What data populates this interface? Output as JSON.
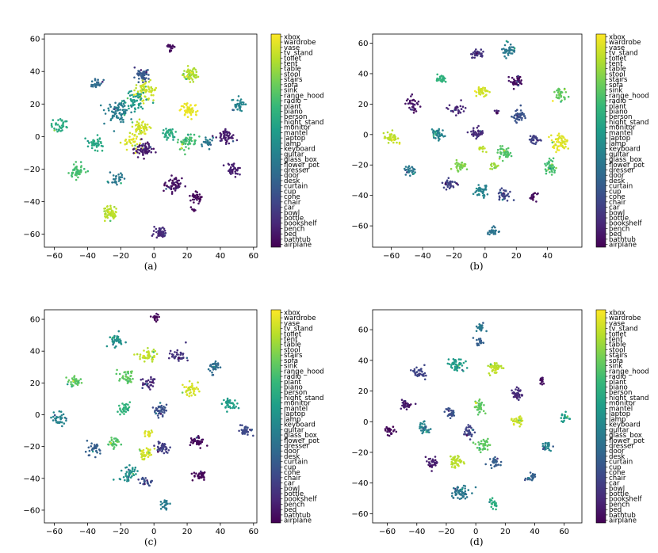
{
  "chart_data": {
    "type": "scatter",
    "description_kind": "t-SNE embedding panels",
    "classes": [
      "xbox",
      "wardrobe",
      "vase",
      "tv_stand",
      "toilet",
      "tent",
      "table",
      "stool",
      "stairs",
      "sofa",
      "sink",
      "range_hood",
      "radio",
      "plant",
      "piano",
      "person",
      "night_stand",
      "monitor",
      "mantel",
      "laptop",
      "lamp",
      "keyboard",
      "guitar",
      "glass_box",
      "flower_pot",
      "dresser",
      "door",
      "desk",
      "curtain",
      "cup",
      "cone",
      "chair",
      "car",
      "bowl",
      "bottle",
      "bookshelf",
      "bench",
      "bed",
      "bathtub",
      "airplane"
    ],
    "colormap": [
      "#440154",
      "#482878",
      "#3e4989",
      "#31688e",
      "#26828e",
      "#1f9e89",
      "#35b779",
      "#6ece58",
      "#b5de2b",
      "#fde725"
    ],
    "panels": [
      {
        "label": "(a)",
        "xlim": [
          -66,
          62
        ],
        "ylim": [
          -68,
          63
        ],
        "xticks": [
          -60,
          -40,
          -20,
          0,
          20,
          40,
          60
        ],
        "yticks": [
          -60,
          -40,
          -20,
          0,
          20,
          40,
          60
        ],
        "clusters": [
          {
            "x": 10,
            "y": 55,
            "c": 0.03,
            "s": 1.2,
            "n": 20
          },
          {
            "x": 22,
            "y": 38,
            "c": 0.88,
            "s": 2.4,
            "n": 60
          },
          {
            "x": -7,
            "y": 38,
            "c": 0.28,
            "s": 2.2,
            "n": 50
          },
          {
            "x": -34,
            "y": 32,
            "c": 0.35,
            "s": 1.8,
            "n": 30
          },
          {
            "x": -5,
            "y": 28,
            "c": 0.92,
            "s": 3.2,
            "n": 70
          },
          {
            "x": -12,
            "y": 22,
            "c": 0.55,
            "s": 3.5,
            "n": 55
          },
          {
            "x": -22,
            "y": 16,
            "c": 0.42,
            "s": 3.5,
            "n": 80
          },
          {
            "x": 21,
            "y": 16,
            "c": 0.97,
            "s": 2.6,
            "n": 55
          },
          {
            "x": 51,
            "y": 20,
            "c": 0.45,
            "s": 2.5,
            "n": 35
          },
          {
            "x": -8,
            "y": 5,
            "c": 0.93,
            "s": 2.6,
            "n": 60
          },
          {
            "x": -57,
            "y": 7,
            "c": 0.6,
            "s": 2.4,
            "n": 35
          },
          {
            "x": -36,
            "y": -4,
            "c": 0.6,
            "s": 2.4,
            "n": 45
          },
          {
            "x": 9,
            "y": 2,
            "c": 0.6,
            "s": 2.0,
            "n": 35
          },
          {
            "x": 20,
            "y": -3,
            "c": 0.7,
            "s": 2.8,
            "n": 55
          },
          {
            "x": 44,
            "y": 0,
            "c": 0.08,
            "s": 2.3,
            "n": 55
          },
          {
            "x": -14,
            "y": -4,
            "c": 0.95,
            "s": 2.8,
            "n": 30
          },
          {
            "x": -6,
            "y": -8,
            "c": 0.07,
            "s": 2.6,
            "n": 65
          },
          {
            "x": 33,
            "y": -4,
            "c": 0.4,
            "s": 1.6,
            "n": 25
          },
          {
            "x": -46,
            "y": -22,
            "c": 0.7,
            "s": 2.4,
            "n": 50
          },
          {
            "x": -23,
            "y": -26,
            "c": 0.4,
            "s": 2.0,
            "n": 30
          },
          {
            "x": 48,
            "y": -20,
            "c": 0.08,
            "s": 2.0,
            "n": 40
          },
          {
            "x": 12,
            "y": -30,
            "c": 0.05,
            "s": 2.4,
            "n": 60
          },
          {
            "x": 25,
            "y": -37,
            "c": 0.02,
            "s": 1.8,
            "n": 35
          },
          {
            "x": -26,
            "y": -47,
            "c": 0.9,
            "s": 2.2,
            "n": 60
          },
          {
            "x": 4,
            "y": -59,
            "c": 0.12,
            "s": 2.0,
            "n": 50
          },
          {
            "x": 24,
            "y": -45,
            "c": 0.03,
            "s": 0.8,
            "n": 6
          }
        ]
      },
      {
        "label": "(b)",
        "xlim": [
          -72,
          62
        ],
        "ylim": [
          -74,
          66
        ],
        "xticks": [
          -60,
          -40,
          -20,
          0,
          20,
          40
        ],
        "yticks": [
          -60,
          -40,
          -20,
          0,
          20,
          40,
          60
        ],
        "clusters": [
          {
            "x": -5,
            "y": 53,
            "c": 0.15,
            "s": 1.8,
            "n": 35
          },
          {
            "x": 15,
            "y": 56,
            "c": 0.4,
            "s": 2.4,
            "n": 40
          },
          {
            "x": -28,
            "y": 36,
            "c": 0.65,
            "s": 1.8,
            "n": 30
          },
          {
            "x": 20,
            "y": 35,
            "c": 0.04,
            "s": 2.0,
            "n": 45
          },
          {
            "x": -2,
            "y": 28,
            "c": 0.93,
            "s": 1.8,
            "n": 35
          },
          {
            "x": 48,
            "y": 26,
            "c": 0.75,
            "s": 2.2,
            "n": 35
          },
          {
            "x": -46,
            "y": 20,
            "c": 0.05,
            "s": 2.5,
            "n": 35
          },
          {
            "x": -18,
            "y": 16,
            "c": 0.1,
            "s": 2.2,
            "n": 30
          },
          {
            "x": 22,
            "y": 12,
            "c": 0.25,
            "s": 2.2,
            "n": 45
          },
          {
            "x": 7,
            "y": 15,
            "c": 0.1,
            "s": 1.0,
            "n": 8
          },
          {
            "x": -60,
            "y": -2,
            "c": 0.9,
            "s": 2.2,
            "n": 40
          },
          {
            "x": -30,
            "y": 0,
            "c": 0.45,
            "s": 2.0,
            "n": 40
          },
          {
            "x": -5,
            "y": 1,
            "c": 0.12,
            "s": 2.0,
            "n": 40
          },
          {
            "x": 32,
            "y": -3,
            "c": 0.2,
            "s": 1.8,
            "n": 30
          },
          {
            "x": 12,
            "y": -12,
            "c": 0.72,
            "s": 2.0,
            "n": 45
          },
          {
            "x": 48,
            "y": -5,
            "c": 0.95,
            "s": 3.0,
            "n": 60
          },
          {
            "x": 6,
            "y": -20,
            "c": 0.85,
            "s": 1.5,
            "n": 15
          },
          {
            "x": -2,
            "y": -10,
            "c": 0.9,
            "s": 1.2,
            "n": 12
          },
          {
            "x": -16,
            "y": -21,
            "c": 0.8,
            "s": 2.0,
            "n": 35
          },
          {
            "x": 42,
            "y": -21,
            "c": 0.7,
            "s": 2.2,
            "n": 45
          },
          {
            "x": -48,
            "y": -24,
            "c": 0.4,
            "s": 2.0,
            "n": 30
          },
          {
            "x": -23,
            "y": -33,
            "c": 0.2,
            "s": 2.2,
            "n": 35
          },
          {
            "x": -2,
            "y": -37,
            "c": 0.45,
            "s": 2.0,
            "n": 40
          },
          {
            "x": 12,
            "y": -40,
            "c": 0.22,
            "s": 2.0,
            "n": 40
          },
          {
            "x": 31,
            "y": -41,
            "c": 0.03,
            "s": 1.2,
            "n": 18
          },
          {
            "x": 5,
            "y": -63,
            "c": 0.38,
            "s": 1.8,
            "n": 25
          }
        ]
      },
      {
        "label": "(c)",
        "xlim": [
          -66,
          62
        ],
        "ylim": [
          -68,
          66
        ],
        "xticks": [
          -60,
          -40,
          -20,
          0,
          20,
          40,
          60
        ],
        "yticks": [
          -60,
          -40,
          -20,
          0,
          20,
          40,
          60
        ],
        "clusters": [
          {
            "x": 1,
            "y": 61,
            "c": 0.02,
            "s": 1.2,
            "n": 20
          },
          {
            "x": -23,
            "y": 47,
            "c": 0.5,
            "s": 2.2,
            "n": 40
          },
          {
            "x": -4,
            "y": 37,
            "c": 0.9,
            "s": 2.6,
            "n": 45
          },
          {
            "x": 15,
            "y": 37,
            "c": 0.15,
            "s": 2.2,
            "n": 40
          },
          {
            "x": 36,
            "y": 30,
            "c": 0.35,
            "s": 2.0,
            "n": 35
          },
          {
            "x": -48,
            "y": 21,
            "c": 0.75,
            "s": 2.0,
            "n": 35
          },
          {
            "x": -17,
            "y": 23,
            "c": 0.75,
            "s": 2.5,
            "n": 40
          },
          {
            "x": -3,
            "y": 20,
            "c": 0.12,
            "s": 2.0,
            "n": 35
          },
          {
            "x": 22,
            "y": 16,
            "c": 0.93,
            "s": 2.2,
            "n": 40
          },
          {
            "x": 46,
            "y": 7,
            "c": 0.55,
            "s": 2.2,
            "n": 40
          },
          {
            "x": -18,
            "y": 4,
            "c": 0.65,
            "s": 1.8,
            "n": 35
          },
          {
            "x": 4,
            "y": 3,
            "c": 0.25,
            "s": 2.0,
            "n": 40
          },
          {
            "x": -57,
            "y": -2,
            "c": 0.45,
            "s": 2.3,
            "n": 35
          },
          {
            "x": 55,
            "y": -10,
            "c": 0.22,
            "s": 2.0,
            "n": 35
          },
          {
            "x": -3,
            "y": -12,
            "c": 0.95,
            "s": 1.5,
            "n": 18
          },
          {
            "x": 5,
            "y": -20,
            "c": 0.18,
            "s": 2.0,
            "n": 40
          },
          {
            "x": 26,
            "y": -17,
            "c": 0.02,
            "s": 2.0,
            "n": 40
          },
          {
            "x": -5,
            "y": -24,
            "c": 0.93,
            "s": 2.2,
            "n": 40
          },
          {
            "x": -37,
            "y": -22,
            "c": 0.3,
            "s": 2.2,
            "n": 35
          },
          {
            "x": -25,
            "y": -18,
            "c": 0.72,
            "s": 2.0,
            "n": 30
          },
          {
            "x": -15,
            "y": -37,
            "c": 0.5,
            "s": 2.8,
            "n": 45
          },
          {
            "x": -5,
            "y": -42,
            "c": 0.25,
            "s": 1.8,
            "n": 25
          },
          {
            "x": 28,
            "y": -38,
            "c": 0.02,
            "s": 2.0,
            "n": 35
          },
          {
            "x": 7,
            "y": -56,
            "c": 0.42,
            "s": 1.6,
            "n": 25
          }
        ]
      },
      {
        "label": "(d)",
        "xlim": [
          -70,
          72
        ],
        "ylim": [
          -66,
          73
        ],
        "xticks": [
          -60,
          -40,
          -20,
          0,
          20,
          40,
          60
        ],
        "yticks": [
          -60,
          -40,
          -20,
          0,
          20,
          40,
          60
        ],
        "clusters": [
          {
            "x": 3,
            "y": 62,
            "c": 0.4,
            "s": 1.5,
            "n": 20
          },
          {
            "x": 3,
            "y": 52,
            "c": 0.3,
            "s": 1.4,
            "n": 20
          },
          {
            "x": -13,
            "y": 37,
            "c": 0.55,
            "s": 2.6,
            "n": 50
          },
          {
            "x": 13,
            "y": 35,
            "c": 0.9,
            "s": 2.2,
            "n": 45
          },
          {
            "x": -38,
            "y": 32,
            "c": 0.2,
            "s": 2.0,
            "n": 35
          },
          {
            "x": 45,
            "y": 27,
            "c": 0.04,
            "s": 1.2,
            "n": 15
          },
          {
            "x": 28,
            "y": 18,
            "c": 0.12,
            "s": 2.0,
            "n": 40
          },
          {
            "x": -48,
            "y": 11,
            "c": 0.08,
            "s": 2.0,
            "n": 35
          },
          {
            "x": 2,
            "y": 10,
            "c": 0.75,
            "s": 2.0,
            "n": 35
          },
          {
            "x": -17,
            "y": 6,
            "c": 0.25,
            "s": 1.8,
            "n": 35
          },
          {
            "x": 28,
            "y": 0,
            "c": 0.92,
            "s": 2.0,
            "n": 35
          },
          {
            "x": 60,
            "y": 3,
            "c": 0.55,
            "s": 1.6,
            "n": 20
          },
          {
            "x": -35,
            "y": -4,
            "c": 0.45,
            "s": 2.0,
            "n": 35
          },
          {
            "x": -58,
            "y": -6,
            "c": 0.02,
            "s": 1.8,
            "n": 25
          },
          {
            "x": -4,
            "y": -6,
            "c": 0.2,
            "s": 2.0,
            "n": 35
          },
          {
            "x": 5,
            "y": -16,
            "c": 0.75,
            "s": 2.2,
            "n": 40
          },
          {
            "x": 48,
            "y": -16,
            "c": 0.45,
            "s": 1.8,
            "n": 25
          },
          {
            "x": -14,
            "y": -26,
            "c": 0.9,
            "s": 2.4,
            "n": 45
          },
          {
            "x": 13,
            "y": -26,
            "c": 0.3,
            "s": 2.0,
            "n": 30
          },
          {
            "x": -30,
            "y": -27,
            "c": 0.08,
            "s": 2.0,
            "n": 35
          },
          {
            "x": 38,
            "y": -36,
            "c": 0.3,
            "s": 1.8,
            "n": 25
          },
          {
            "x": -10,
            "y": -46,
            "c": 0.4,
            "s": 3.0,
            "n": 55
          },
          {
            "x": 12,
            "y": -54,
            "c": 0.62,
            "s": 1.8,
            "n": 25
          }
        ]
      }
    ]
  }
}
